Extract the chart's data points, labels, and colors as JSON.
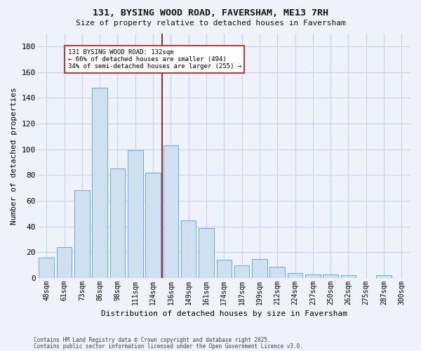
{
  "title1": "131, BYSING WOOD ROAD, FAVERSHAM, ME13 7RH",
  "title2": "Size of property relative to detached houses in Faversham",
  "xlabel": "Distribution of detached houses by size in Faversham",
  "ylabel": "Number of detached properties",
  "categories": [
    "48sqm",
    "61sqm",
    "73sqm",
    "86sqm",
    "98sqm",
    "111sqm",
    "124sqm",
    "136sqm",
    "149sqm",
    "161sqm",
    "174sqm",
    "187sqm",
    "199sqm",
    "212sqm",
    "224sqm",
    "237sqm",
    "250sqm",
    "262sqm",
    "275sqm",
    "287sqm",
    "300sqm"
  ],
  "values": [
    16,
    24,
    68,
    148,
    85,
    99,
    82,
    103,
    45,
    39,
    14,
    10,
    15,
    9,
    4,
    3,
    3,
    2,
    0,
    2,
    0
  ],
  "bar_color": "#cfe0f0",
  "bar_edge_color": "#6aaad4",
  "vline_color": "#8b0000",
  "annotation_line1": "131 BYSING WOOD ROAD: 132sqm",
  "annotation_line2": "← 66% of detached houses are smaller (494)",
  "annotation_line3": "34% of semi-detached houses are larger (255) →",
  "annotation_box_color": "#ffffff",
  "annotation_box_edge": "#cc2222",
  "ylim": [
    0,
    190
  ],
  "yticks": [
    0,
    20,
    40,
    60,
    80,
    100,
    120,
    140,
    160,
    180
  ],
  "bg_color": "#edf2fb",
  "grid_color": "#c8d4e8",
  "footer1": "Contains HM Land Registry data © Crown copyright and database right 2025.",
  "footer2": "Contains public sector information licensed under the Open Government Licence v3.0."
}
